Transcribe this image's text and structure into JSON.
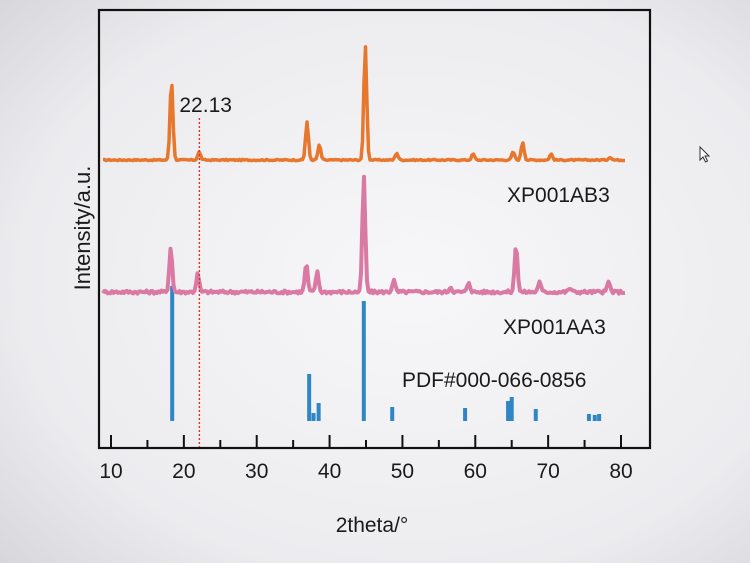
{
  "chart_data": {
    "type": "line",
    "xlabel": "2theta/°",
    "ylabel": "Intensity/a.u.",
    "xlim": [
      10,
      80
    ],
    "x_ticks": [
      10,
      20,
      30,
      40,
      50,
      60,
      70,
      80
    ],
    "x_tick_labels": [
      "10",
      "20",
      "30",
      "40",
      "50",
      "60",
      "70",
      "80"
    ],
    "grid": false,
    "legend": "none",
    "annotation": {
      "label": "22.13",
      "x": 22.13,
      "color": "#e0312b"
    },
    "series": [
      {
        "name": "XP001AB3",
        "color": "#e8772e",
        "baseline": 0,
        "peaks": [
          {
            "x": 18.3,
            "h": 80
          },
          {
            "x": 22.1,
            "h": 8
          },
          {
            "x": 36.9,
            "h": 38
          },
          {
            "x": 38.6,
            "h": 15
          },
          {
            "x": 44.9,
            "h": 115
          },
          {
            "x": 49.2,
            "h": 7
          },
          {
            "x": 59.7,
            "h": 6
          },
          {
            "x": 65.2,
            "h": 8
          },
          {
            "x": 66.5,
            "h": 18
          },
          {
            "x": 70.4,
            "h": 6
          },
          {
            "x": 78.5,
            "h": 3
          }
        ]
      },
      {
        "name": "XP001AA3",
        "color": "#d97aa5",
        "baseline": 0,
        "peaks": [
          {
            "x": 18.2,
            "h": 45
          },
          {
            "x": 21.9,
            "h": 18
          },
          {
            "x": 36.8,
            "h": 28
          },
          {
            "x": 38.3,
            "h": 20
          },
          {
            "x": 44.7,
            "h": 115
          },
          {
            "x": 48.8,
            "h": 12
          },
          {
            "x": 56.6,
            "h": 5
          },
          {
            "x": 59.1,
            "h": 10
          },
          {
            "x": 65.6,
            "h": 48
          },
          {
            "x": 68.8,
            "h": 10
          },
          {
            "x": 73.0,
            "h": 4
          },
          {
            "x": 78.3,
            "h": 10
          }
        ]
      }
    ],
    "reference": {
      "name": "PDF#000-066-0856",
      "color": "#2f86c4",
      "lines": [
        {
          "x": 18.4,
          "h": 135
        },
        {
          "x": 37.2,
          "h": 47
        },
        {
          "x": 37.8,
          "h": 8
        },
        {
          "x": 38.5,
          "h": 18
        },
        {
          "x": 44.7,
          "h": 120
        },
        {
          "x": 48.6,
          "h": 14
        },
        {
          "x": 58.6,
          "h": 13
        },
        {
          "x": 64.5,
          "h": 20
        },
        {
          "x": 65.0,
          "h": 24
        },
        {
          "x": 68.3,
          "h": 12
        },
        {
          "x": 75.6,
          "h": 7
        },
        {
          "x": 76.4,
          "h": 6
        },
        {
          "x": 77.0,
          "h": 7
        }
      ]
    }
  }
}
